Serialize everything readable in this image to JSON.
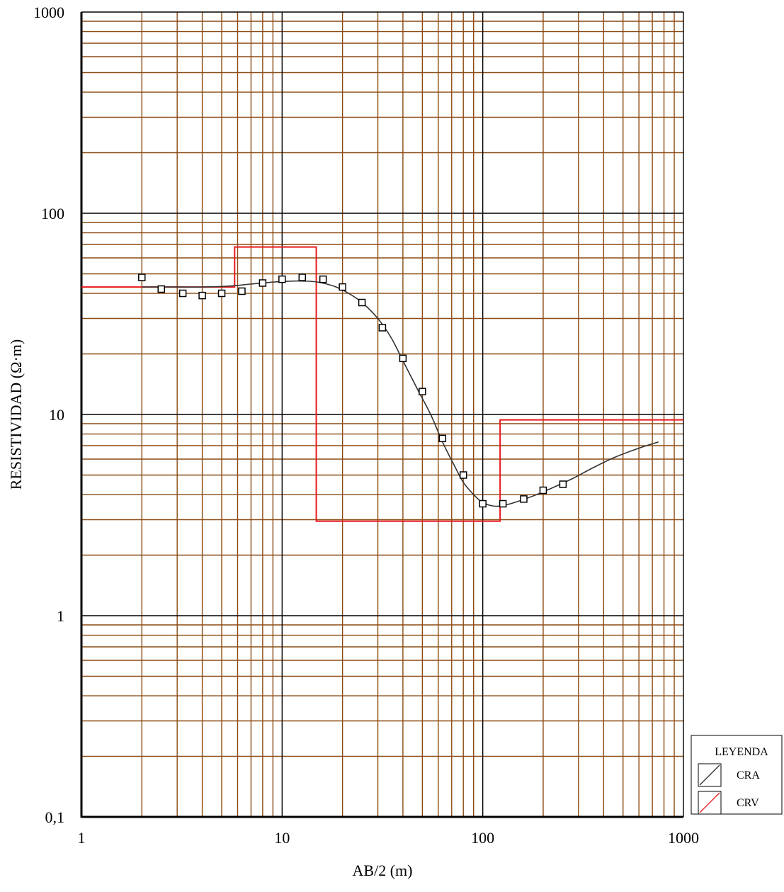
{
  "chart_data": {
    "type": "line",
    "x_scale": "log",
    "y_scale": "log",
    "xlim": [
      1,
      1000
    ],
    "ylim": [
      0.1,
      1000
    ],
    "xlabel": "AB/2 (m)",
    "ylabel": "RESISTIVIDAD (Ω·m)",
    "x_ticks": [
      {
        "value": 1,
        "label": "1"
      },
      {
        "value": 10,
        "label": "10"
      },
      {
        "value": 100,
        "label": "100"
      },
      {
        "value": 1000,
        "label": "1000"
      }
    ],
    "y_ticks": [
      {
        "value": 0.1,
        "label": "0,1"
      },
      {
        "value": 1,
        "label": "1"
      },
      {
        "value": 10,
        "label": "10"
      },
      {
        "value": 100,
        "label": "100"
      },
      {
        "value": 1000,
        "label": "1000"
      }
    ],
    "grid": true,
    "colors": {
      "major_grid": "#000000",
      "minor_grid": "#8b4a12",
      "cra": "#333333",
      "crv": "#e8191c",
      "points": "#000000"
    },
    "legend": {
      "title": "LEYENDA",
      "position": "bottom-right",
      "entries": [
        "CRA",
        "CRV"
      ]
    },
    "measured_points": [
      [
        2.0,
        48
      ],
      [
        2.5,
        42
      ],
      [
        3.2,
        40
      ],
      [
        4.0,
        39
      ],
      [
        5.0,
        40
      ],
      [
        6.3,
        41
      ],
      [
        8.0,
        45
      ],
      [
        10.0,
        47
      ],
      [
        12.6,
        48
      ],
      [
        16.0,
        47
      ],
      [
        20.0,
        43
      ],
      [
        25.0,
        36
      ],
      [
        31.6,
        27
      ],
      [
        40.0,
        19
      ],
      [
        50.0,
        13
      ],
      [
        63.0,
        7.6
      ],
      [
        80.0,
        5.0
      ],
      [
        100.0,
        3.6
      ],
      [
        126.0,
        3.6
      ],
      [
        160.0,
        3.8
      ],
      [
        200.0,
        4.2
      ],
      [
        251.0,
        4.5
      ]
    ],
    "series": [
      {
        "name": "CRA",
        "type": "line",
        "x": [
          2.0,
          3.0,
          4.0,
          5.5,
          7.0,
          9.0,
          11.0,
          13.0,
          15.0,
          18.0,
          21.0,
          25.0,
          30.0,
          35.0,
          40.0,
          47.0,
          55.0,
          63.0,
          72.0,
          80.0,
          90.0,
          100.0,
          115.0,
          130.0,
          150.0,
          180.0,
          220.0,
          280.0,
          350.0,
          450.0,
          600.0,
          750.0
        ],
        "y": [
          43,
          43,
          43,
          43.5,
          44.5,
          45.5,
          46,
          46,
          45.5,
          43.5,
          40.5,
          36,
          30,
          24,
          18.5,
          13.5,
          10,
          7.3,
          5.6,
          4.6,
          4.0,
          3.65,
          3.5,
          3.55,
          3.7,
          3.95,
          4.3,
          4.8,
          5.4,
          6.1,
          6.8,
          7.3
        ]
      },
      {
        "name": "CRV",
        "type": "step",
        "x": [
          1,
          5.8,
          5.8,
          14.8,
          14.8,
          122,
          122,
          1000
        ],
        "y": [
          43,
          43,
          68,
          68,
          2.95,
          2.95,
          9.4,
          9.4
        ]
      }
    ]
  }
}
